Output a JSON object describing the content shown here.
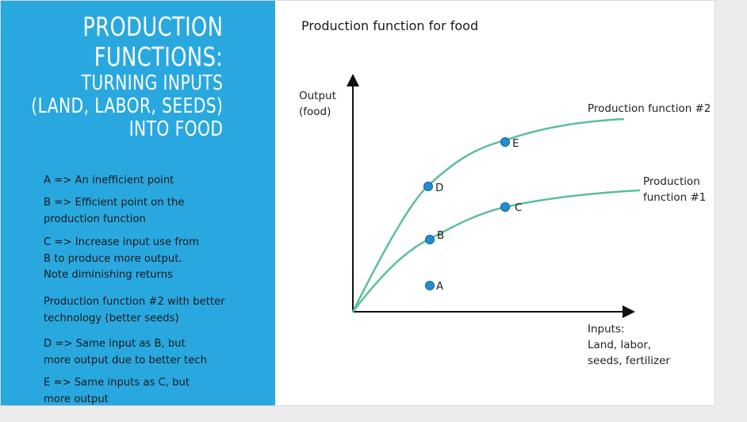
{
  "title": {
    "main_lines": [
      "PRODUCTION",
      "FUNCTIONS:"
    ],
    "sub_lines": [
      "TURNING INPUTS",
      "(LAND, LABOR, SEEDS)",
      "INTO FOOD"
    ]
  },
  "notes": [
    "A => An inefficient point",
    "B => Efficient point on the\nproduction function",
    "C => Increase input use from\nB to produce more output.\nNote diminishing returns",
    "Production function #2 with better\ntechnology (better seeds)",
    "D => Same input as B, but\nmore output due to better tech",
    "E => Same inputs as C, but\nmore output"
  ],
  "diagram": {
    "title": "Production function for food",
    "y_label_lines": [
      "Output",
      "(food)"
    ],
    "x_label_lines": [
      "Inputs:",
      "Land, labor,",
      "seeds, fertilizer"
    ],
    "curve2_label_lines": [
      "Production function #2"
    ],
    "curve1_label_lines": [
      "Production",
      "function #1"
    ],
    "points": [
      {
        "label": "A"
      },
      {
        "label": "B"
      },
      {
        "label": "C"
      },
      {
        "label": "D"
      },
      {
        "label": "E"
      }
    ],
    "colors": {
      "panel": "#29a8e0",
      "curve": "#5bbf95",
      "point_fill": "#1e8fd6",
      "point_stroke": "#1a5f8a",
      "axis": "#111111"
    }
  }
}
